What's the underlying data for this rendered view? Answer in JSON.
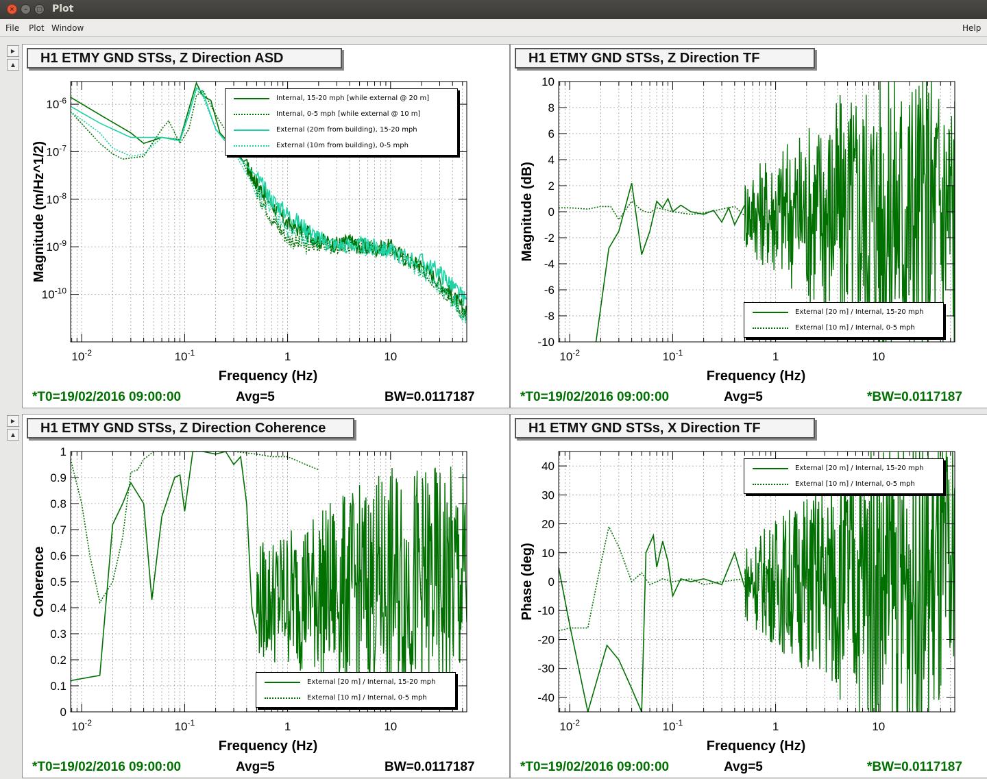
{
  "window": {
    "title": "Plot",
    "close_glyph": "×",
    "min_glyph": "–",
    "max_glyph": "□"
  },
  "menu": {
    "file": "File",
    "plot": "Plot",
    "window": "Window",
    "help": "Help"
  },
  "colors": {
    "dark_green": "#007000",
    "light": "#1ed2a4"
  },
  "pads": [
    {
      "title": "H1 ETMY GND STSs, Z Direction ASD",
      "footer": {
        "t0": "*T0=19/02/2016 09:00:00",
        "avg": "Avg=5",
        "bw": "BW=0.0117187"
      },
      "legend": [
        {
          "label": "Internal, 15-20 mph [while external @ 20 m]",
          "style": "solid-dark"
        },
        {
          "label": "Internal, 0-5 mph [while external @ 10 m]",
          "style": "dotted-dark"
        },
        {
          "label": "External (20m from building), 15-20 mph",
          "style": "solid-light"
        },
        {
          "label": "External (10m from building), 0-5 mph",
          "style": "dotted-light"
        }
      ],
      "chart_data": {
        "type": "line",
        "xlabel": "Frequency (Hz)",
        "ylabel": "Magnitude (m/Hz^1/2)",
        "xscale": "log",
        "yscale": "log",
        "xlim": [
          0.0078,
          55
        ],
        "ylim": [
          1e-11,
          3e-06
        ],
        "xticks": [
          "10-2",
          "10-1",
          "1",
          "10"
        ],
        "yticks": [
          "10-6",
          "10-7",
          "10-8",
          "10-9",
          "10-10"
        ],
        "series": [
          {
            "name": "Internal, 15-20 mph [while external @ 20 m]",
            "color": "#007000",
            "dash": false,
            "x": [
              0.0078,
              0.015,
              0.03,
              0.04,
              0.06,
              0.09,
              0.11,
              0.13,
              0.15,
              0.18,
              0.22,
              0.3,
              0.4,
              0.5,
              0.7,
              1,
              1.5,
              2,
              3,
              4,
              5,
              7,
              10,
              15,
              20,
              30,
              40,
              55
            ],
            "y": [
              1.4e-06,
              6e-07,
              2.5e-07,
              1.5e-07,
              2e-07,
              1.8e-07,
              8e-07,
              2.8e-06,
              1.5e-06,
              1.2e-06,
              2.5e-07,
              1.2e-07,
              5e-08,
              2.2e-08,
              8e-09,
              3e-09,
              2e-09,
              1.4e-09,
              1.1e-09,
              1.3e-09,
              1e-09,
              9e-10,
              1e-09,
              5e-10,
              4e-10,
              1.8e-10,
              9e-11,
              4e-11
            ]
          },
          {
            "name": "Internal, 0-5 mph [while external @ 10 m]",
            "color": "#007000",
            "dash": true,
            "x": [
              0.0078,
              0.015,
              0.02,
              0.025,
              0.04,
              0.06,
              0.07,
              0.09,
              0.11,
              0.13,
              0.15,
              0.2,
              0.3,
              0.5,
              0.7,
              1,
              1.5,
              2,
              3,
              5,
              10,
              20,
              40,
              55
            ],
            "y": [
              7e-07,
              1.5e-07,
              9e-08,
              7e-08,
              8e-08,
              3e-07,
              4.5e-07,
              1.5e-07,
              3e-07,
              1.5e-06,
              2e-06,
              6e-07,
              1.5e-07,
              1.5e-08,
              4e-09,
              1.5e-09,
              1e-09,
              1.2e-09,
              1e-09,
              1.1e-09,
              8e-10,
              3.5e-10,
              8e-11,
              3e-11
            ]
          },
          {
            "name": "External (20m from building), 15-20 mph",
            "color": "#1ed2a4",
            "dash": false,
            "x": [
              0.0078,
              0.015,
              0.03,
              0.04,
              0.06,
              0.09,
              0.11,
              0.13,
              0.15,
              0.2,
              0.3,
              0.5,
              0.7,
              1,
              1.5,
              2,
              3,
              5,
              7,
              10,
              20,
              30,
              40,
              55
            ],
            "y": [
              9e-07,
              4e-07,
              2e-07,
              2e-07,
              2e-07,
              1.7e-07,
              6e-07,
              2.2e-06,
              1.8e-06,
              3e-07,
              1e-07,
              3e-08,
              1e-08,
              5e-09,
              2.5e-09,
              1.5e-09,
              1.1e-09,
              1.1e-09,
              1e-09,
              8e-10,
              5e-10,
              3e-10,
              1.5e-10,
              7e-11
            ]
          },
          {
            "name": "External (10m from building), 0-5 mph",
            "color": "#1ed2a4",
            "dash": true,
            "x": [
              0.0078,
              0.015,
              0.02,
              0.03,
              0.04,
              0.06,
              0.09,
              0.13,
              0.15,
              0.2,
              0.3,
              0.5,
              1,
              2,
              5,
              10,
              20,
              40,
              55
            ],
            "y": [
              7e-07,
              2.5e-07,
              1.2e-07,
              8e-08,
              9e-08,
              2e-07,
              1.8e-07,
              2e-06,
              1.5e-06,
              3e-07,
              1e-07,
              1.5e-08,
              2e-09,
              1.2e-09,
              1e-09,
              8e-10,
              3e-10,
              8e-11,
              3e-11
            ]
          }
        ]
      }
    },
    {
      "title": "H1 ETMY GND STSs, Z Direction TF",
      "footer": {
        "t0": "*T0=19/02/2016 09:00:00",
        "avg": "Avg=5",
        "bw": "*BW=0.0117187"
      },
      "legend": [
        {
          "label": "External [20 m] / Internal, 15-20 mph",
          "style": "solid-dark"
        },
        {
          "label": "External [10 m] / Internal, 0-5 mph",
          "style": "dotted-dark"
        }
      ],
      "chart_data": {
        "type": "line",
        "xlabel": "Frequency (Hz)",
        "ylabel": "Magnitude (dB)",
        "xscale": "log",
        "yscale": "linear",
        "xlim": [
          0.0078,
          55
        ],
        "ylim": [
          -10,
          10
        ],
        "xticks": [
          "10-2",
          "10-1",
          "1",
          "10"
        ],
        "yticks": [
          "10",
          "8",
          "6",
          "4",
          "2",
          "0",
          "-2",
          "-4",
          "-6",
          "-8",
          "-10"
        ],
        "series": [
          {
            "name": "External [20 m] / Internal, 15-20 mph",
            "color": "#007000",
            "dash": false,
            "x": [
              0.018,
              0.024,
              0.03,
              0.04,
              0.05,
              0.06,
              0.07,
              0.08,
              0.09,
              0.1,
              0.12,
              0.15,
              0.2,
              0.25,
              0.3,
              0.35,
              0.4,
              0.5
            ],
            "y": [
              -10,
              -2.8,
              -1.5,
              2.2,
              -3.3,
              -1.5,
              0.8,
              0.3,
              1,
              0,
              0.5,
              0,
              -0.2,
              0.1,
              -0.8,
              0.3,
              -1,
              0.5
            ]
          },
          {
            "name": "External [10 m] / Internal, 0-5 mph",
            "color": "#007000",
            "dash": true,
            "x": [
              0.0078,
              0.01,
              0.015,
              0.02,
              0.025,
              0.03,
              0.04,
              0.05,
              0.06,
              0.07,
              0.08,
              0.1,
              0.15,
              0.2,
              0.3,
              0.4,
              0.5
            ],
            "y": [
              0.3,
              0.3,
              0.2,
              0.4,
              0.4,
              -0.6,
              0.8,
              0.1,
              -0.1,
              0.3,
              0.2,
              0,
              -0.2,
              -0.1,
              0.2,
              0.4,
              -0.3
            ]
          }
        ]
      }
    },
    {
      "title": "H1 ETMY GND STSs, Z Direction Coherence",
      "footer": {
        "t0": "*T0=19/02/2016 09:00:00",
        "avg": "Avg=5",
        "bw": "BW=0.0117187"
      },
      "legend": [
        {
          "label": "External [20 m] / Internal, 15-20 mph",
          "style": "solid-dark"
        },
        {
          "label": "External [10 m] / Internal, 0-5 mph",
          "style": "dotted-dark"
        }
      ],
      "chart_data": {
        "type": "line",
        "xlabel": "Frequency (Hz)",
        "ylabel": "Coherence",
        "xscale": "log",
        "yscale": "linear",
        "xlim": [
          0.0078,
          55
        ],
        "ylim": [
          0,
          1
        ],
        "xticks": [
          "10-2",
          "10-1",
          "1",
          "10"
        ],
        "yticks": [
          "1",
          "0.9",
          "0.8",
          "0.7",
          "0.6",
          "0.5",
          "0.4",
          "0.3",
          "0.2",
          "0.1",
          "0"
        ],
        "series": [
          {
            "name": "External [20 m] / Internal, 15-20 mph",
            "color": "#007000",
            "dash": false,
            "x": [
              0.0078,
              0.015,
              0.02,
              0.025,
              0.03,
              0.04,
              0.048,
              0.06,
              0.08,
              0.09,
              0.1,
              0.12,
              0.15,
              0.2,
              0.25,
              0.3,
              0.35,
              0.4,
              0.45,
              0.5
            ],
            "y": [
              0.12,
              0.14,
              0.72,
              0.8,
              0.88,
              0.8,
              0.43,
              0.75,
              0.9,
              0.91,
              0.77,
              1,
              1,
              0.99,
              1,
              0.95,
              0.98,
              0.8,
              0.4,
              0.3
            ]
          },
          {
            "name": "External [10 m] / Internal, 0-5 mph",
            "color": "#007000",
            "dash": true,
            "x": [
              0.0078,
              0.01,
              0.012,
              0.015,
              0.02,
              0.025,
              0.03,
              0.035,
              0.04,
              0.05,
              0.07,
              0.1,
              0.2,
              0.3,
              0.5,
              0.7,
              1,
              1.5,
              2
            ],
            "y": [
              0.97,
              0.8,
              0.6,
              0.42,
              0.5,
              0.67,
              0.92,
              0.93,
              0.97,
              1,
              1,
              1,
              1,
              1,
              0.99,
              0.98,
              0.98,
              0.95,
              0.93
            ]
          }
        ]
      }
    },
    {
      "title": "H1 ETMY GND STSs, X Direction TF",
      "footer": {
        "t0": "*T0=19/02/2016 09:00:00",
        "avg": "Avg=5",
        "bw": "*BW=0.0117187"
      },
      "legend": [
        {
          "label": "External [20 m] / Internal, 15-20 mph",
          "style": "solid-dark"
        },
        {
          "label": "External [10 m] / Internal, 0-5 mph",
          "style": "dotted-dark"
        }
      ],
      "chart_data": {
        "type": "line",
        "xlabel": "Frequency (Hz)",
        "ylabel": "Phase (deg)",
        "xscale": "log",
        "yscale": "linear",
        "xlim": [
          0.0078,
          55
        ],
        "ylim": [
          -45,
          45
        ],
        "xticks": [
          "10-2",
          "10-1",
          "1",
          "10"
        ],
        "yticks": [
          "40",
          "30",
          "20",
          "10",
          "0",
          "-10",
          "-20",
          "-30",
          "-40"
        ],
        "series": [
          {
            "name": "External [20 m] / Internal, 15-20 mph",
            "color": "#007000",
            "dash": false,
            "x": [
              0.0078,
              0.01,
              0.015,
              0.023,
              0.03,
              0.04,
              0.05,
              0.055,
              0.065,
              0.07,
              0.08,
              0.09,
              0.1,
              0.12,
              0.15,
              0.2,
              0.3,
              0.4,
              0.5
            ],
            "y": [
              5,
              -15,
              -45,
              -22,
              -27,
              -37,
              -45,
              10,
              16,
              5,
              14,
              7,
              -5,
              1,
              0,
              1,
              -1,
              10,
              -2
            ]
          },
          {
            "name": "External [10 m] / Internal, 0-5 mph",
            "color": "#007000",
            "dash": true,
            "x": [
              0.0078,
              0.01,
              0.015,
              0.02,
              0.024,
              0.03,
              0.04,
              0.05,
              0.06,
              0.07,
              0.08,
              0.1,
              0.15,
              0.2,
              0.3,
              0.5
            ],
            "y": [
              -17,
              -16,
              -16,
              6,
              19,
              12,
              0,
              3,
              -1,
              0,
              1,
              0,
              1,
              -1,
              0,
              1
            ]
          }
        ]
      }
    }
  ]
}
